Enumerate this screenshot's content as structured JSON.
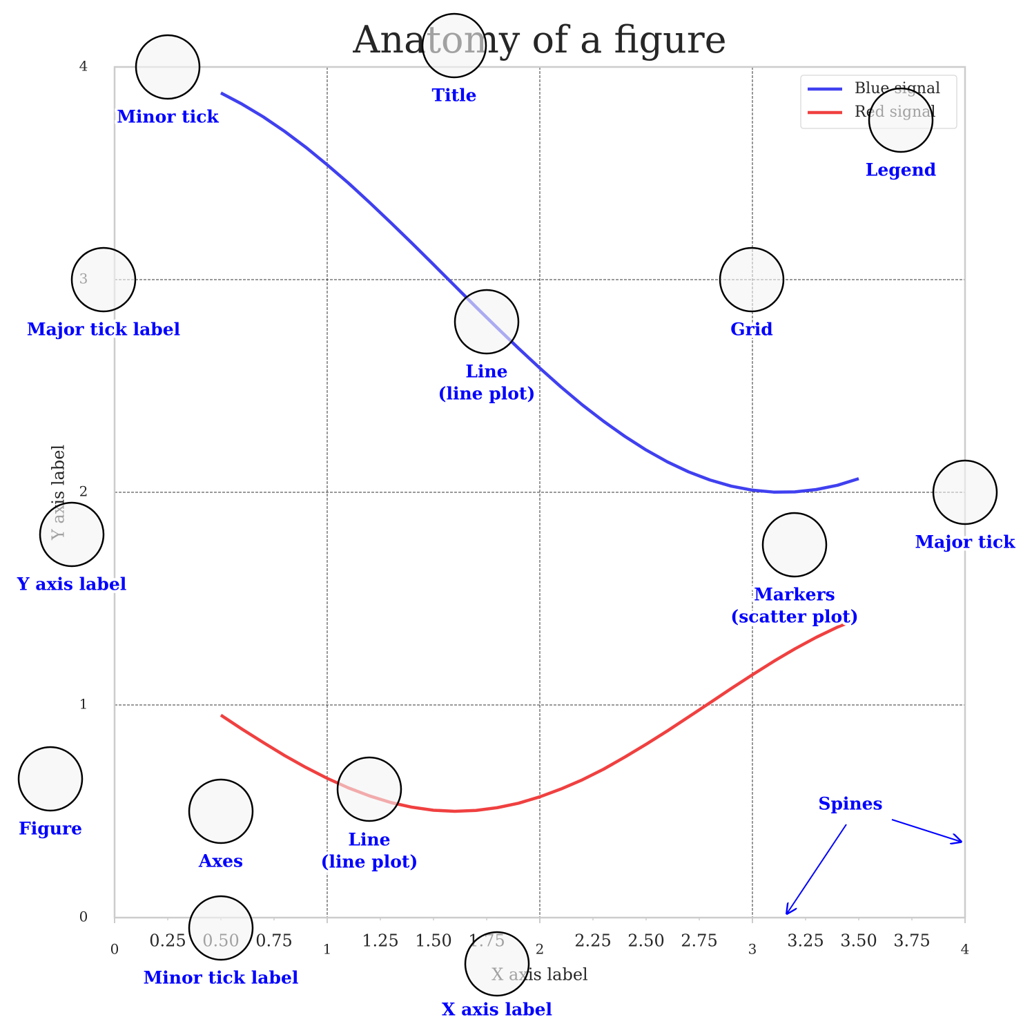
{
  "chart_data": {
    "type": "line",
    "title": "Anatomy of a figure",
    "xlabel": "X axis label",
    "ylabel": "Y axis label",
    "xlim": [
      0,
      4
    ],
    "ylim": [
      0,
      4
    ],
    "xticks": [
      0,
      1,
      2,
      3,
      4
    ],
    "yticks": [
      0,
      1,
      2,
      3,
      4
    ],
    "xminorticks": [
      0.25,
      {
        "value": 0.5,
        "label": "0.50"
      },
      0.75,
      1.25,
      {
        "value": 1.5,
        "label": "1.50"
      },
      1.75,
      2.25,
      {
        "value": 2.5,
        "label": "2.50"
      },
      2.75,
      3.25,
      {
        "value": 3.5,
        "label": "3.50"
      },
      3.75
    ],
    "grid": true,
    "legend": "upper right",
    "x": [
      0.5,
      0.6,
      0.7,
      0.8,
      0.9,
      1.0,
      1.1,
      1.2,
      1.3,
      1.4,
      1.5,
      1.6,
      1.7,
      1.8,
      1.9,
      2.0,
      2.1,
      2.2,
      2.3,
      2.4,
      2.5,
      2.6,
      2.7,
      2.8,
      2.9,
      3.0,
      3.1,
      3.2,
      3.3,
      3.4,
      3.5
    ],
    "series": [
      {
        "name": "Blue signal",
        "color": "#4040f0",
        "values": [
          3.878,
          3.825,
          3.765,
          3.697,
          3.622,
          3.54,
          3.454,
          3.362,
          3.267,
          3.17,
          3.071,
          2.971,
          2.871,
          2.773,
          2.677,
          2.584,
          2.495,
          2.411,
          2.334,
          2.263,
          2.199,
          2.143,
          2.096,
          2.058,
          2.029,
          2.01,
          2.001,
          2.002,
          2.013,
          2.033,
          2.064
        ]
      },
      {
        "name": "Red signal",
        "color": "#f04040",
        "values": [
          0.952,
          0.886,
          0.823,
          0.762,
          0.706,
          0.655,
          0.61,
          0.572,
          0.541,
          0.519,
          0.505,
          0.5,
          0.504,
          0.517,
          0.538,
          0.568,
          0.605,
          0.648,
          0.698,
          0.755,
          0.815,
          0.878,
          0.944,
          1.01,
          1.077,
          1.142,
          1.205,
          1.264,
          1.318,
          1.366,
          1.407
        ]
      }
    ],
    "annotations": [
      {
        "lines": [
          "Minor tick"
        ]
      },
      {
        "lines": [
          "Title"
        ]
      },
      {
        "lines": [
          "Legend"
        ]
      },
      {
        "lines": [
          "Major tick label"
        ]
      },
      {
        "lines": [
          "Grid"
        ]
      },
      {
        "lines": [
          "Line",
          "(line plot)"
        ]
      },
      {
        "lines": [
          "Major tick"
        ]
      },
      {
        "lines": [
          "Y axis label"
        ]
      },
      {
        "lines": [
          "Markers",
          "(scatter plot)"
        ]
      },
      {
        "lines": [
          "Figure"
        ]
      },
      {
        "lines": [
          "Axes"
        ]
      },
      {
        "lines": [
          "Line",
          "(line plot)"
        ]
      },
      {
        "lines": [
          "Minor tick label"
        ]
      },
      {
        "lines": [
          "X axis label"
        ]
      },
      {
        "lines": [
          "Spines"
        ]
      }
    ]
  }
}
